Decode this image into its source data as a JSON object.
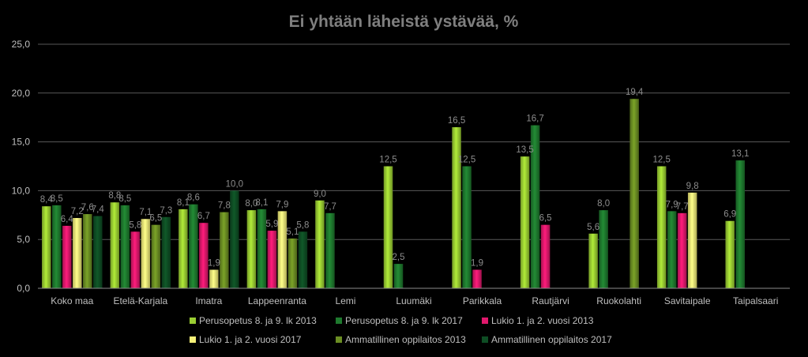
{
  "chart_data": {
    "type": "bar",
    "title": "Ei yhtään läheistä ystävää, %",
    "xlabel": "",
    "ylabel": "",
    "ylim": [
      0,
      25
    ],
    "yticks": [
      "0,0",
      "5,0",
      "10,0",
      "15,0",
      "20,0",
      "25,0"
    ],
    "grid": true,
    "legend_position": "bottom",
    "categories": [
      "Koko maa",
      "Etelä-Karjala",
      "Imatra",
      "Lappeenranta",
      "Lemi",
      "Luumäki",
      "Parikkala",
      "Rautjärvi",
      "Ruokolahti",
      "Savitaipale",
      "Taipalsaari"
    ],
    "series": [
      {
        "name": "Perusopetus 8. ja 9. lk 2013",
        "color": "#9ACD32",
        "values": [
          8.4,
          8.8,
          8.1,
          8.0,
          9.0,
          12.5,
          16.5,
          13.5,
          5.6,
          12.5,
          6.9
        ],
        "labels": [
          "8,4",
          "8,8",
          "8,1",
          "8,0",
          "9,0",
          "12,5",
          "16,5",
          "13,5",
          "5,6",
          "12,5",
          "6,9"
        ]
      },
      {
        "name": "Perusopetus 8. ja 9. lk 2017",
        "color": "#1E7A2E",
        "values": [
          8.5,
          8.5,
          8.6,
          8.1,
          7.7,
          2.5,
          12.5,
          16.7,
          8.0,
          7.9,
          13.1
        ],
        "labels": [
          "8,5",
          "8,5",
          "8,6",
          "8,1",
          "7,7",
          "2,5",
          "12,5",
          "16,7",
          "8,0",
          "7,9",
          "13,1"
        ]
      },
      {
        "name": "Lukio 1. ja 2. vuosi 2013",
        "color": "#E0186C",
        "values": [
          6.4,
          5.8,
          6.7,
          5.9,
          null,
          null,
          1.9,
          6.5,
          null,
          7.7,
          null
        ],
        "labels": [
          "6,4",
          "5,8",
          "6,7",
          "5,9",
          "",
          "",
          "1,9",
          "6,5",
          "",
          "7,7",
          ""
        ]
      },
      {
        "name": "Lukio 1. ja 2. vuosi 2017",
        "color": "#F5F078",
        "values": [
          7.2,
          7.1,
          1.9,
          7.9,
          null,
          null,
          null,
          null,
          null,
          9.8,
          null
        ],
        "labels": [
          "7,2",
          "7,1",
          "1,9",
          "7,9",
          "",
          "",
          "",
          "",
          "",
          "9,8",
          ""
        ]
      },
      {
        "name": "Ammatillinen oppilaitos 2013",
        "color": "#6B8E23",
        "values": [
          7.6,
          6.5,
          7.8,
          5.1,
          null,
          null,
          null,
          null,
          19.4,
          null,
          null
        ],
        "labels": [
          "7,6",
          "6,5",
          "7,8",
          "5,1",
          "",
          "",
          "",
          "",
          "19,4",
          "",
          ""
        ]
      },
      {
        "name": "Ammatillinen oppilaitos 2017",
        "color": "#0E4D24",
        "values": [
          7.4,
          7.3,
          10.0,
          5.8,
          null,
          null,
          null,
          null,
          null,
          null,
          null
        ],
        "labels": [
          "7,4",
          "7,3",
          "10,0",
          "5,8",
          "",
          "",
          "",
          "",
          "",
          "",
          ""
        ]
      }
    ]
  }
}
